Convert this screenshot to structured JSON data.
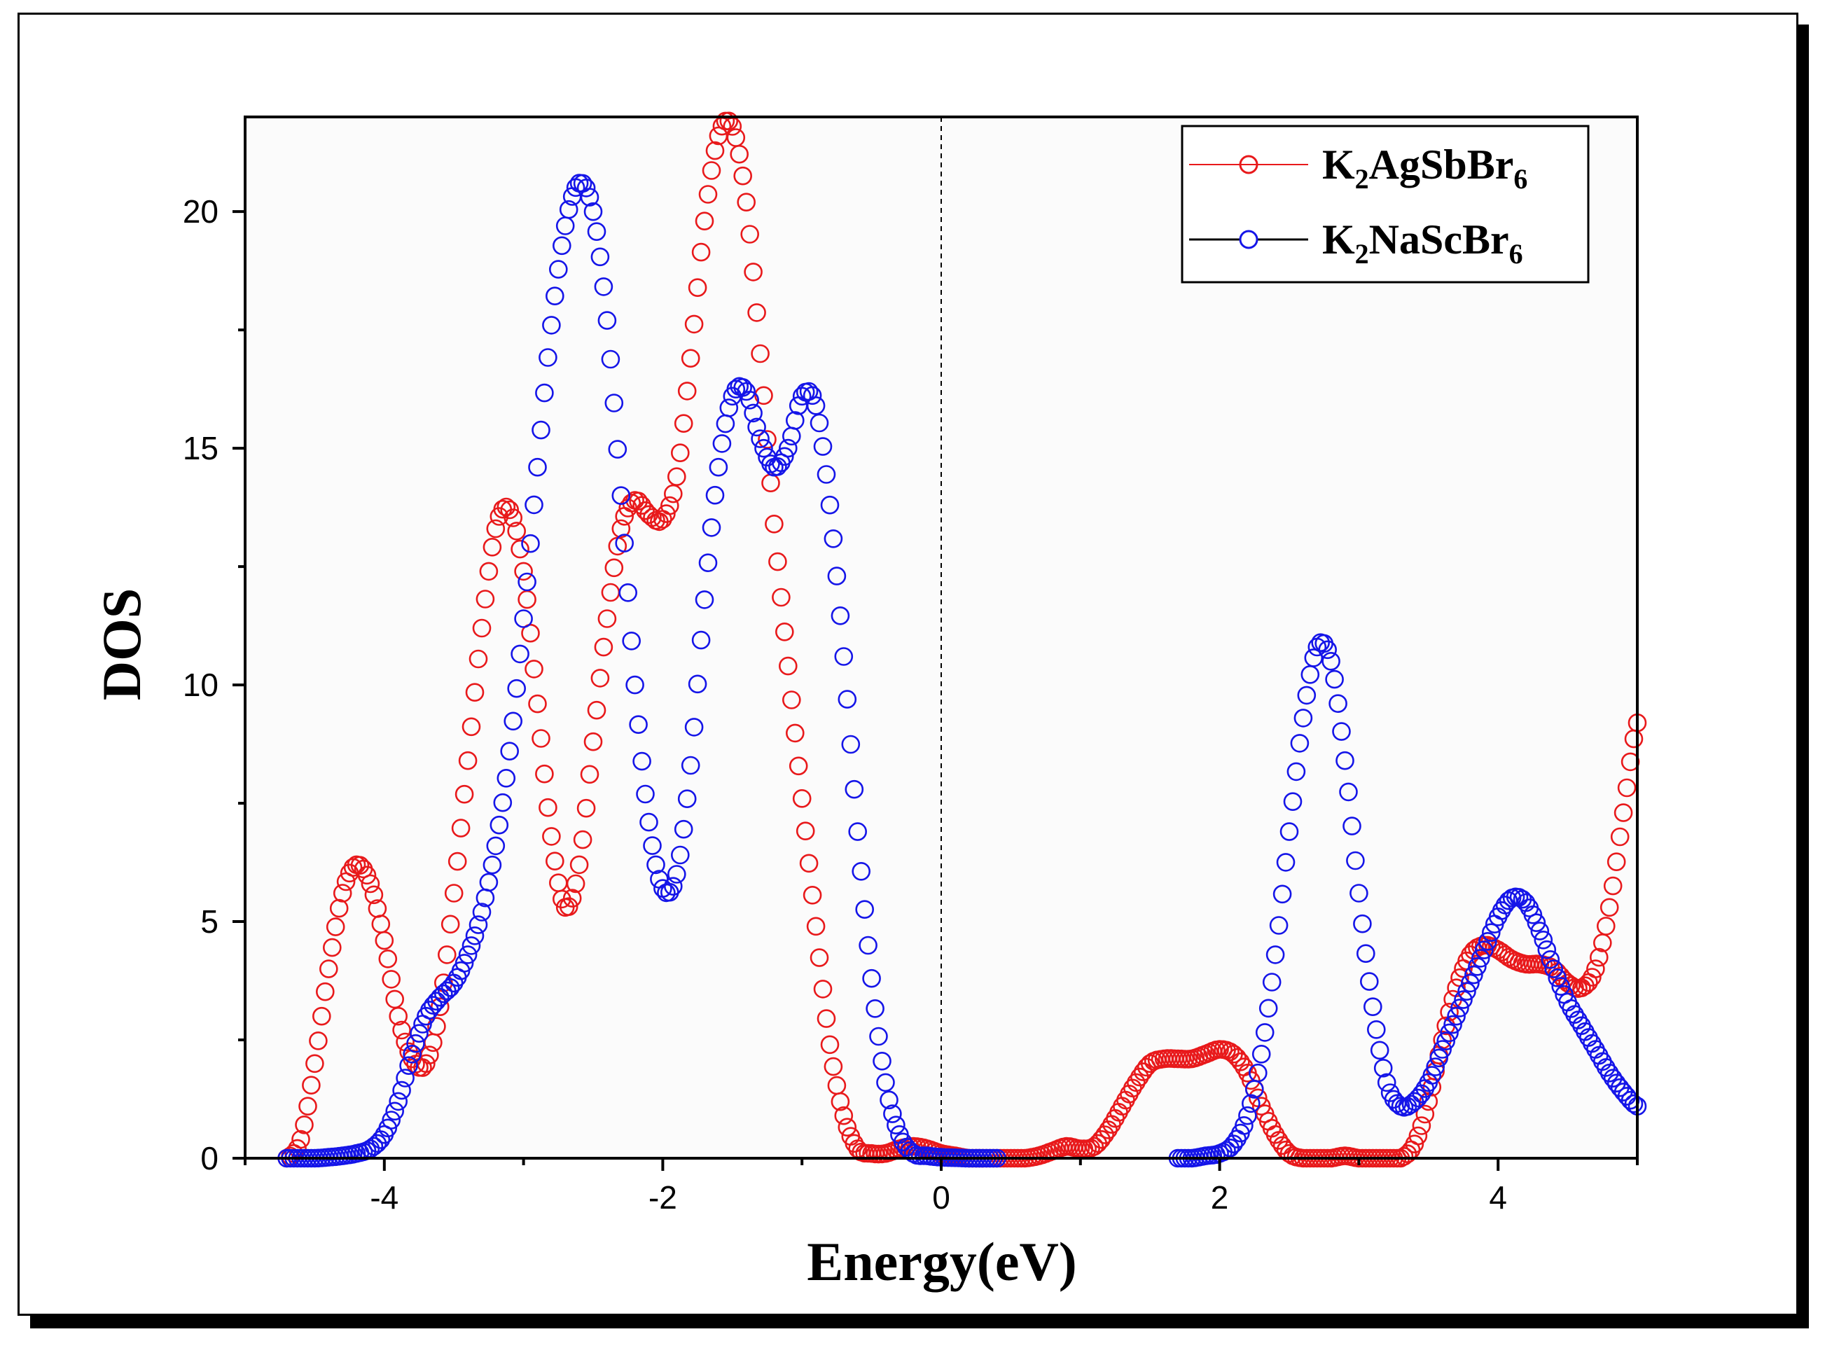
{
  "chart_data": {
    "type": "scatter",
    "title": "",
    "xlabel": "Energy(eV)",
    "ylabel": "DOS",
    "xlim": [
      -5,
      5
    ],
    "ylim": [
      0,
      22
    ],
    "xticks": [
      -4,
      -2,
      0,
      2,
      4
    ],
    "yticks": [
      0,
      5,
      10,
      15,
      20
    ],
    "xtick_labels": [
      "-4",
      "-2",
      "0",
      "2",
      "4"
    ],
    "ytick_labels": [
      "0",
      "5",
      "10",
      "15",
      "20"
    ],
    "fermi_level_line": 0,
    "legend_position": "top-right",
    "series": [
      {
        "name": "K2AgSbBr6",
        "legend_base": "K",
        "legend_sub1": "2",
        "legend_mid": "AgSbBr",
        "legend_sub2": "6",
        "color": "#e8191b",
        "x": [
          -4.7,
          -4.6,
          -4.5,
          -4.4,
          -4.3,
          -4.2,
          -4.1,
          -4.0,
          -3.9,
          -3.8,
          -3.7,
          -3.6,
          -3.5,
          -3.4,
          -3.3,
          -3.2,
          -3.1,
          -3.0,
          -2.9,
          -2.8,
          -2.7,
          -2.6,
          -2.5,
          -2.4,
          -2.3,
          -2.2,
          -2.1,
          -2.0,
          -1.9,
          -1.8,
          -1.7,
          -1.6,
          -1.5,
          -1.4,
          -1.3,
          -1.2,
          -1.1,
          -1.0,
          -0.9,
          -0.8,
          -0.7,
          -0.6,
          -0.5,
          -0.4,
          -0.3,
          -0.2,
          -0.1,
          0.0,
          0.1,
          0.2,
          0.3,
          0.4,
          0.5,
          0.6,
          0.7,
          0.8,
          0.9,
          1.0,
          1.1,
          1.2,
          1.3,
          1.4,
          1.5,
          1.6,
          1.7,
          1.8,
          1.9,
          2.0,
          2.1,
          2.2,
          2.3,
          2.4,
          2.5,
          2.6,
          2.7,
          2.8,
          2.9,
          3.0,
          3.1,
          3.2,
          3.3,
          3.4,
          3.5,
          3.6,
          3.7,
          3.8,
          3.9,
          4.0,
          4.1,
          4.2,
          4.3,
          4.4,
          4.5,
          4.6,
          4.7,
          4.8,
          4.9,
          5.0
        ],
        "y": [
          0.0,
          0.4,
          2.0,
          4.0,
          5.6,
          6.2,
          5.8,
          4.6,
          3.0,
          2.1,
          2.0,
          3.2,
          5.6,
          8.4,
          11.2,
          13.3,
          13.7,
          12.4,
          9.6,
          6.8,
          5.3,
          6.2,
          8.8,
          11.4,
          13.3,
          13.9,
          13.6,
          13.5,
          14.4,
          16.9,
          19.8,
          21.6,
          21.8,
          20.2,
          17.0,
          13.4,
          10.4,
          7.6,
          4.9,
          2.4,
          0.9,
          0.2,
          0.1,
          0.1,
          0.2,
          0.25,
          0.2,
          0.1,
          0.05,
          0.0,
          0.0,
          0.0,
          0.0,
          0.0,
          0.05,
          0.15,
          0.25,
          0.2,
          0.25,
          0.6,
          1.1,
          1.6,
          2.0,
          2.1,
          2.1,
          2.1,
          2.2,
          2.3,
          2.2,
          1.8,
          1.1,
          0.5,
          0.1,
          0.0,
          0.0,
          0.0,
          0.05,
          0.0,
          0.0,
          0.0,
          0.0,
          0.3,
          1.2,
          2.5,
          3.6,
          4.3,
          4.5,
          4.4,
          4.2,
          4.1,
          4.1,
          4.0,
          3.7,
          3.6,
          4.0,
          5.3,
          7.3,
          9.2
        ]
      },
      {
        "name": "K2NaScBr6",
        "legend_base": "K",
        "legend_sub1": "2",
        "legend_mid": "NaScBr",
        "legend_sub2": "6",
        "color": "#1515e8",
        "x": [
          -4.7,
          -4.6,
          -4.5,
          -4.4,
          -4.3,
          -4.2,
          -4.1,
          -4.0,
          -3.9,
          -3.8,
          -3.7,
          -3.6,
          -3.5,
          -3.4,
          -3.3,
          -3.2,
          -3.1,
          -3.0,
          -2.9,
          -2.8,
          -2.7,
          -2.6,
          -2.5,
          -2.4,
          -2.3,
          -2.2,
          -2.1,
          -2.0,
          -1.9,
          -1.8,
          -1.7,
          -1.6,
          -1.5,
          -1.4,
          -1.3,
          -1.2,
          -1.1,
          -1.0,
          -0.9,
          -0.8,
          -0.7,
          -0.6,
          -0.5,
          -0.4,
          -0.3,
          -0.2,
          -0.1,
          0.0,
          0.1,
          0.2,
          0.3,
          0.4,
          1.7,
          1.8,
          1.9,
          2.0,
          2.1,
          2.2,
          2.3,
          2.4,
          2.5,
          2.6,
          2.7,
          2.8,
          2.9,
          3.0,
          3.1,
          3.2,
          3.3,
          3.4,
          3.5,
          3.6,
          3.7,
          3.8,
          3.9,
          4.0,
          4.1,
          4.2,
          4.3,
          4.4,
          4.5,
          4.6,
          4.7,
          4.8,
          4.9,
          5.0
        ],
        "y": [
          0.0,
          0.0,
          0.0,
          0.02,
          0.05,
          0.1,
          0.2,
          0.5,
          1.2,
          2.2,
          3.0,
          3.4,
          3.7,
          4.3,
          5.2,
          6.6,
          8.6,
          11.4,
          14.6,
          17.6,
          19.7,
          20.6,
          20.0,
          17.7,
          14.0,
          10.0,
          7.1,
          5.7,
          6.0,
          8.3,
          11.8,
          14.6,
          16.1,
          16.2,
          15.2,
          14.6,
          15.0,
          16.1,
          15.9,
          13.8,
          10.6,
          6.9,
          3.8,
          1.6,
          0.5,
          0.1,
          0.05,
          0.02,
          0.01,
          0.0,
          0.0,
          0.0,
          0.0,
          0.0,
          0.05,
          0.1,
          0.3,
          0.9,
          2.2,
          4.3,
          6.9,
          9.3,
          10.8,
          10.5,
          8.4,
          5.6,
          3.2,
          1.6,
          1.1,
          1.2,
          1.6,
          2.3,
          3.0,
          3.7,
          4.4,
          5.1,
          5.5,
          5.4,
          4.8,
          4.0,
          3.3,
          2.8,
          2.3,
          1.8,
          1.4,
          1.1
        ]
      }
    ]
  }
}
